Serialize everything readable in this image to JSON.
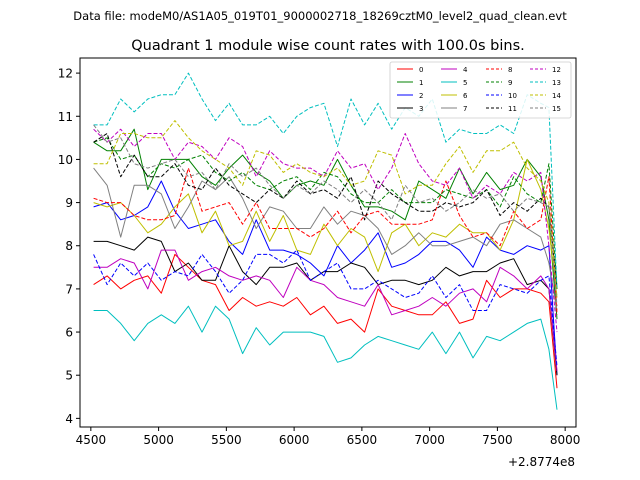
{
  "suptitle": "Data file: modeM0/AS1A05_019T01_9000002718_18269cztM0_level2_quad_clean.evt",
  "chart_data": {
    "type": "line",
    "title": "Quadrant 1 module wise count rates with 100.0s bins.",
    "xlabel": "",
    "ylabel": "",
    "x_offset_label": "+2.8774e8",
    "xlim": [
      4420,
      8080
    ],
    "ylim": [
      3.8,
      12.35
    ],
    "xticks": [
      4500,
      5000,
      5500,
      6000,
      6500,
      7000,
      7500,
      8000
    ],
    "yticks": [
      4,
      5,
      6,
      7,
      8,
      9,
      10,
      11,
      12
    ],
    "grid": false,
    "legend_position": "top-right",
    "x": [
      4520,
      4620,
      4720,
      4820,
      4920,
      5020,
      5120,
      5220,
      5320,
      5420,
      5520,
      5620,
      5720,
      5820,
      5920,
      6020,
      6120,
      6220,
      6320,
      6420,
      6520,
      6620,
      6720,
      6820,
      6920,
      7020,
      7120,
      7220,
      7320,
      7420,
      7520,
      7620,
      7720,
      7820,
      7880,
      7940
    ],
    "series": [
      {
        "name": "0",
        "color": "#ff0000",
        "dash": "solid",
        "values": [
          7.1,
          7.3,
          7.0,
          7.2,
          7.3,
          6.9,
          7.8,
          7.5,
          7.2,
          7.1,
          6.5,
          6.8,
          6.6,
          6.7,
          6.6,
          6.8,
          6.4,
          6.6,
          6.2,
          6.3,
          6.0,
          7.0,
          6.6,
          6.5,
          6.4,
          6.4,
          6.7,
          6.2,
          6.3,
          7.2,
          6.8,
          7.0,
          7.0,
          6.9,
          6.7,
          4.7
        ]
      },
      {
        "name": "1",
        "color": "#008000",
        "dash": "solid",
        "values": [
          10.4,
          10.2,
          10.2,
          10.7,
          9.3,
          10.0,
          10.0,
          10.0,
          9.6,
          9.4,
          9.8,
          10.1,
          9.7,
          9.5,
          9.1,
          9.4,
          9.5,
          9.4,
          10.0,
          9.4,
          8.9,
          8.9,
          8.8,
          8.6,
          9.5,
          9.3,
          9.1,
          9.8,
          9.2,
          9.7,
          9.3,
          9.4,
          10.0,
          9.6,
          8.6,
          6.3
        ]
      },
      {
        "name": "2",
        "color": "#0000ff",
        "dash": "solid",
        "values": [
          8.9,
          9.0,
          8.6,
          8.7,
          8.9,
          9.5,
          8.8,
          8.4,
          8.5,
          8.6,
          8.1,
          7.8,
          8.6,
          7.9,
          7.9,
          7.8,
          7.6,
          7.3,
          8.0,
          7.6,
          7.9,
          8.3,
          7.5,
          7.6,
          7.8,
          8.1,
          8.1,
          7.9,
          7.5,
          8.2,
          7.9,
          7.8,
          8.0,
          7.9,
          8.0,
          5.0
        ]
      },
      {
        "name": "3",
        "color": "#000000",
        "dash": "solid",
        "values": [
          8.1,
          8.1,
          8.0,
          7.9,
          8.2,
          8.1,
          7.4,
          7.6,
          7.2,
          7.2,
          8.0,
          7.4,
          7.1,
          7.5,
          7.5,
          7.6,
          7.2,
          7.4,
          7.4,
          7.6,
          7.5,
          7.1,
          7.2,
          7.2,
          7.1,
          7.2,
          7.5,
          7.3,
          7.4,
          7.4,
          7.6,
          7.7,
          7.1,
          7.2,
          7.0,
          5.0
        ]
      },
      {
        "name": "4",
        "color": "#bf00bf",
        "dash": "solid",
        "values": [
          7.5,
          7.5,
          7.7,
          7.6,
          7.0,
          7.9,
          7.9,
          7.2,
          7.4,
          7.5,
          7.3,
          7.2,
          7.3,
          7.2,
          6.8,
          7.5,
          7.2,
          7.1,
          6.8,
          6.7,
          6.6,
          7.1,
          6.4,
          6.5,
          6.6,
          6.8,
          6.6,
          6.9,
          7.0,
          6.7,
          7.5,
          7.3,
          7.0,
          7.3,
          7.0,
          5.1
        ]
      },
      {
        "name": "5",
        "color": "#00bfbf",
        "dash": "solid",
        "values": [
          6.5,
          6.5,
          6.2,
          5.8,
          6.2,
          6.4,
          6.2,
          6.6,
          6.0,
          6.6,
          6.3,
          5.5,
          6.1,
          5.7,
          6.0,
          6.0,
          6.0,
          5.9,
          5.3,
          5.4,
          5.7,
          5.9,
          5.8,
          5.7,
          5.6,
          6.0,
          5.5,
          6.0,
          5.4,
          5.9,
          5.8,
          6.0,
          6.2,
          6.3,
          5.6,
          4.2
        ]
      },
      {
        "name": "6",
        "color": "#bfbf00",
        "dash": "solid",
        "values": [
          9.0,
          8.9,
          9.0,
          8.7,
          8.3,
          8.5,
          8.9,
          9.2,
          8.3,
          8.8,
          8.0,
          8.1,
          8.8,
          8.1,
          8.7,
          7.9,
          7.8,
          8.5,
          8.0,
          8.4,
          8.2,
          7.4,
          8.3,
          8.5,
          8.0,
          8.3,
          8.2,
          8.5,
          8.3,
          8.3,
          7.9,
          8.6,
          10.0,
          9.3,
          8.4,
          6.8
        ]
      },
      {
        "name": "7",
        "color": "#808080",
        "dash": "solid",
        "values": [
          9.8,
          9.4,
          8.2,
          9.4,
          9.4,
          9.2,
          8.4,
          8.9,
          9.5,
          9.3,
          9.6,
          9.1,
          8.4,
          8.9,
          8.8,
          8.4,
          8.4,
          8.9,
          8.5,
          8.8,
          8.7,
          8.4,
          7.8,
          8.0,
          8.3,
          8.0,
          8.0,
          8.1,
          8.2,
          8.0,
          8.5,
          8.6,
          8.4,
          8.2,
          7.6,
          6.5
        ]
      },
      {
        "name": "8",
        "color": "#ff0000",
        "dash": "dashed",
        "values": [
          9.1,
          9.0,
          9.0,
          8.7,
          8.6,
          8.6,
          8.7,
          9.8,
          8.8,
          8.9,
          9.0,
          8.5,
          9.0,
          8.4,
          8.4,
          8.4,
          8.2,
          8.4,
          8.8,
          8.3,
          8.7,
          8.8,
          8.5,
          8.5,
          8.5,
          8.6,
          9.5,
          8.7,
          8.2,
          8.3,
          8.0,
          8.8,
          8.4,
          8.6,
          9.6,
          6.4
        ]
      },
      {
        "name": "9",
        "color": "#008000",
        "dash": "dashed",
        "values": [
          10.4,
          10.5,
          10.0,
          10.1,
          9.6,
          9.9,
          9.8,
          10.0,
          10.1,
          9.7,
          9.5,
          9.7,
          9.4,
          9.3,
          9.5,
          9.6,
          9.3,
          9.7,
          9.6,
          9.2,
          9.0,
          9.0,
          9.3,
          9.0,
          9.0,
          9.0,
          9.3,
          9.2,
          9.1,
          9.3,
          8.9,
          9.6,
          9.2,
          9.0,
          9.9,
          7.0
        ]
      },
      {
        "name": "10",
        "color": "#0000ff",
        "dash": "dashed",
        "values": [
          7.8,
          7.1,
          7.6,
          7.3,
          7.6,
          7.2,
          7.4,
          7.3,
          7.8,
          7.4,
          6.9,
          7.2,
          7.8,
          7.8,
          7.6,
          7.9,
          7.2,
          7.4,
          7.6,
          7.0,
          7.0,
          7.2,
          7.0,
          6.8,
          6.9,
          7.3,
          6.8,
          7.1,
          6.5,
          6.5,
          7.1,
          7.0,
          6.9,
          7.2,
          7.3,
          5.2
        ]
      },
      {
        "name": "11",
        "color": "#000000",
        "dash": "dashed",
        "values": [
          10.4,
          10.6,
          9.6,
          10.1,
          9.6,
          9.6,
          9.9,
          9.4,
          9.3,
          9.8,
          9.4,
          9.2,
          9.0,
          9.3,
          9.1,
          9.5,
          9.2,
          9.3,
          9.1,
          9.6,
          8.6,
          9.5,
          9.2,
          9.0,
          8.8,
          8.8,
          9.0,
          8.9,
          9.0,
          9.3,
          8.7,
          9.0,
          8.8,
          9.1,
          8.9,
          7.0
        ]
      },
      {
        "name": "12",
        "color": "#bf00bf",
        "dash": "dashed",
        "values": [
          10.7,
          10.4,
          10.7,
          10.3,
          10.6,
          10.6,
          10.0,
          10.4,
          10.3,
          10.0,
          10.5,
          10.3,
          9.6,
          10.2,
          9.9,
          9.8,
          9.8,
          9.6,
          10.2,
          9.8,
          9.9,
          9.3,
          9.8,
          10.6,
          9.9,
          9.5,
          9.4,
          9.8,
          9.1,
          9.4,
          9.2,
          9.7,
          9.5,
          9.7,
          8.0,
          6.0
        ]
      },
      {
        "name": "13",
        "color": "#00bfbf",
        "dash": "dashed",
        "values": [
          10.8,
          10.8,
          11.4,
          11.1,
          11.4,
          11.5,
          11.5,
          12.0,
          11.4,
          10.9,
          11.3,
          10.8,
          10.8,
          11.0,
          10.6,
          11.0,
          11.2,
          11.3,
          10.3,
          11.4,
          10.8,
          11.3,
          10.7,
          11.2,
          11.0,
          11.4,
          10.4,
          10.7,
          10.6,
          10.6,
          10.8,
          10.6,
          11.5,
          11.3,
          11.2,
          7.0
        ]
      },
      {
        "name": "14",
        "color": "#bfbf00",
        "dash": "dashed",
        "values": [
          9.9,
          9.9,
          10.6,
          10.6,
          10.5,
          10.5,
          10.9,
          10.5,
          10.2,
          10.0,
          9.8,
          9.4,
          10.2,
          10.1,
          9.7,
          9.9,
          9.7,
          9.6,
          9.8,
          9.4,
          9.5,
          10.2,
          10.1,
          9.2,
          9.4,
          9.4,
          9.9,
          10.3,
          9.7,
          10.2,
          10.2,
          10.4,
          9.8,
          9.5,
          9.0,
          6.8
        ]
      },
      {
        "name": "15",
        "color": "#808080",
        "dash": "dashed",
        "values": [
          10.8,
          10.4,
          10.5,
          9.9,
          9.8,
          9.9,
          10.0,
          9.6,
          9.7,
          9.3,
          9.9,
          9.6,
          9.8,
          9.4,
          9.1,
          9.4,
          9.2,
          9.5,
          9.3,
          9.0,
          9.3,
          9.0,
          8.6,
          9.4,
          9.0,
          9.1,
          8.8,
          9.0,
          9.3,
          9.1,
          9.2,
          8.8,
          9.1,
          9.0,
          8.9,
          6.6
        ]
      }
    ]
  }
}
